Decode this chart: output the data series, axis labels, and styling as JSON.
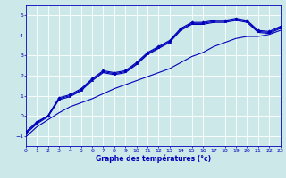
{
  "xlabel": "Graphe des températures (°c)",
  "bg_color": "#cce8e8",
  "line_color": "#0000bb",
  "grid_color": "#ffffff",
  "xlim": [
    0,
    23
  ],
  "ylim": [
    -1.5,
    5.5
  ],
  "yticks": [
    -1,
    0,
    1,
    2,
    3,
    4,
    5
  ],
  "xticks": [
    0,
    1,
    2,
    3,
    4,
    5,
    6,
    7,
    8,
    9,
    10,
    11,
    12,
    13,
    14,
    15,
    16,
    17,
    18,
    19,
    20,
    21,
    22,
    23
  ],
  "series1_x": [
    0,
    1,
    2,
    3,
    4,
    5,
    6,
    7,
    8,
    9,
    10,
    11,
    12,
    13,
    14,
    15,
    16,
    17,
    18,
    19,
    20,
    21,
    22,
    23
  ],
  "series1_y": [
    -0.8,
    -0.3,
    0.0,
    0.9,
    1.05,
    1.35,
    1.85,
    2.25,
    2.15,
    2.25,
    2.65,
    3.15,
    3.45,
    3.75,
    4.35,
    4.65,
    4.65,
    4.75,
    4.75,
    4.85,
    4.75,
    4.25,
    4.2,
    4.45
  ],
  "series2_x": [
    0,
    1,
    2,
    3,
    4,
    5,
    6,
    7,
    8,
    9,
    10,
    11,
    12,
    13,
    14,
    15,
    16,
    17,
    18,
    19,
    20,
    21,
    22,
    23
  ],
  "series2_y": [
    -0.85,
    -0.35,
    0.0,
    0.85,
    1.0,
    1.3,
    1.8,
    2.2,
    2.1,
    2.2,
    2.6,
    3.1,
    3.4,
    3.7,
    4.3,
    4.6,
    4.6,
    4.7,
    4.7,
    4.8,
    4.7,
    4.2,
    4.15,
    4.4
  ],
  "series3_x": [
    0,
    1,
    2,
    3,
    4,
    5,
    6,
    7,
    8,
    9,
    10,
    11,
    12,
    13,
    14,
    15,
    16,
    17,
    18,
    19,
    20,
    21,
    22,
    23
  ],
  "series3_y": [
    -0.9,
    -0.4,
    -0.05,
    0.8,
    0.95,
    1.25,
    1.75,
    2.15,
    2.05,
    2.15,
    2.55,
    3.05,
    3.35,
    3.65,
    4.25,
    4.55,
    4.55,
    4.65,
    4.65,
    4.75,
    4.65,
    4.15,
    4.1,
    4.35
  ],
  "series4_x": [
    0,
    1,
    2,
    3,
    4,
    5,
    6,
    7,
    8,
    9,
    10,
    11,
    12,
    13,
    14,
    15,
    16,
    17,
    18,
    19,
    20,
    21,
    22,
    23
  ],
  "series4_y": [
    -1.05,
    -0.55,
    -0.2,
    0.15,
    0.45,
    0.65,
    0.85,
    1.1,
    1.35,
    1.55,
    1.75,
    1.95,
    2.15,
    2.35,
    2.65,
    2.95,
    3.15,
    3.45,
    3.65,
    3.85,
    3.95,
    3.95,
    4.05,
    4.25
  ]
}
